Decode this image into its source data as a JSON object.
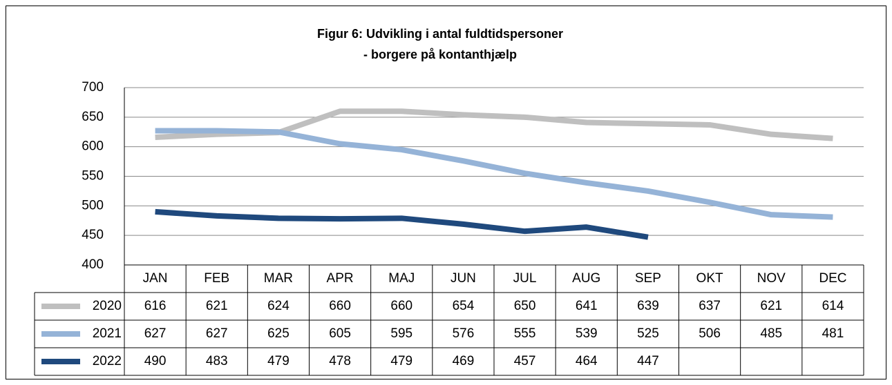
{
  "chart_data": {
    "type": "line",
    "title": "Figur 6: Udvikling i antal fuldtidspersoner",
    "subtitle": "- borgere på kontanthjælp",
    "categories": [
      "JAN",
      "FEB",
      "MAR",
      "APR",
      "MAJ",
      "JUN",
      "JUL",
      "AUG",
      "SEP",
      "OKT",
      "NOV",
      "DEC"
    ],
    "series": [
      {
        "name": "2020",
        "color": "#bfbfbf",
        "values": [
          616,
          621,
          624,
          660,
          660,
          654,
          650,
          641,
          639,
          637,
          621,
          614
        ]
      },
      {
        "name": "2021",
        "color": "#95b3d7",
        "values": [
          627,
          627,
          625,
          605,
          595,
          576,
          555,
          539,
          525,
          506,
          485,
          481
        ]
      },
      {
        "name": "2022",
        "color": "#1f497d",
        "values": [
          490,
          483,
          479,
          478,
          479,
          469,
          457,
          464,
          447,
          null,
          null,
          null
        ]
      }
    ],
    "ylim": [
      400,
      700
    ],
    "yticks": [
      400,
      450,
      500,
      550,
      600,
      650,
      700
    ],
    "grid": true
  }
}
